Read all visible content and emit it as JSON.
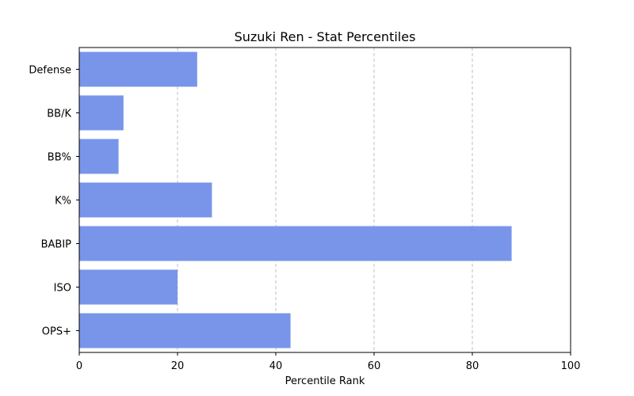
{
  "chart_data": {
    "type": "bar",
    "orientation": "horizontal",
    "title": "Suzuki Ren - Stat Percentiles",
    "xlabel": "Percentile Rank",
    "ylabel": "",
    "xlim": [
      0,
      100
    ],
    "xticks": [
      0,
      20,
      40,
      60,
      80,
      100
    ],
    "grid": "x-axis dashed",
    "bar_color": "#7895E9",
    "categories": [
      "Defense",
      "BB/K",
      "BB%",
      "K%",
      "BABIP",
      "ISO",
      "OPS+"
    ],
    "values": [
      24,
      9,
      8,
      27,
      88,
      20,
      43
    ]
  }
}
